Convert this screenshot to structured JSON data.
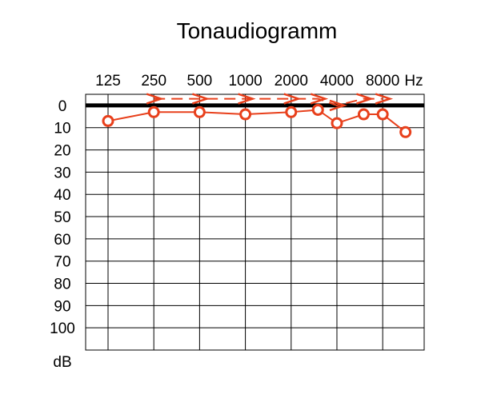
{
  "chart_data": {
    "type": "line",
    "title": "Tonaudiogramm",
    "x_unit": "Hz",
    "y_unit": "dB",
    "x_ticks": [
      "125",
      "250",
      "500",
      "1000",
      "2000",
      "4000",
      "8000"
    ],
    "x_ticks_values": [
      125,
      250,
      500,
      1000,
      2000,
      4000,
      8000
    ],
    "y_ticks": [
      "0",
      "10",
      "20",
      "30",
      "40",
      "50",
      "60",
      "70",
      "80",
      "90",
      "100"
    ],
    "y_ticks_values": [
      0,
      10,
      20,
      30,
      40,
      50,
      60,
      70,
      80,
      90,
      100
    ],
    "x_range": [
      125,
      11300
    ],
    "y_range": [
      -5,
      110
    ],
    "y_inverted": true,
    "x_scale": "log",
    "grid": true,
    "reference_line_db": 0,
    "colors": {
      "series": "#e8401c",
      "grid": "#000000",
      "reference": "#000000"
    },
    "series": [
      {
        "marker": "circle",
        "x": [
          125,
          250,
          500,
          1000,
          2000,
          3000,
          4000,
          6000,
          8000,
          11300
        ],
        "y": [
          7,
          3,
          3,
          4,
          3,
          2,
          8,
          4,
          4,
          12
        ]
      },
      {
        "marker": "chevron-right",
        "x": [
          250,
          500,
          1000,
          2000,
          3000,
          4000,
          6000,
          8000
        ],
        "y": [
          -3,
          -3,
          -3,
          -3,
          -3,
          0,
          -3,
          -3
        ]
      }
    ]
  }
}
